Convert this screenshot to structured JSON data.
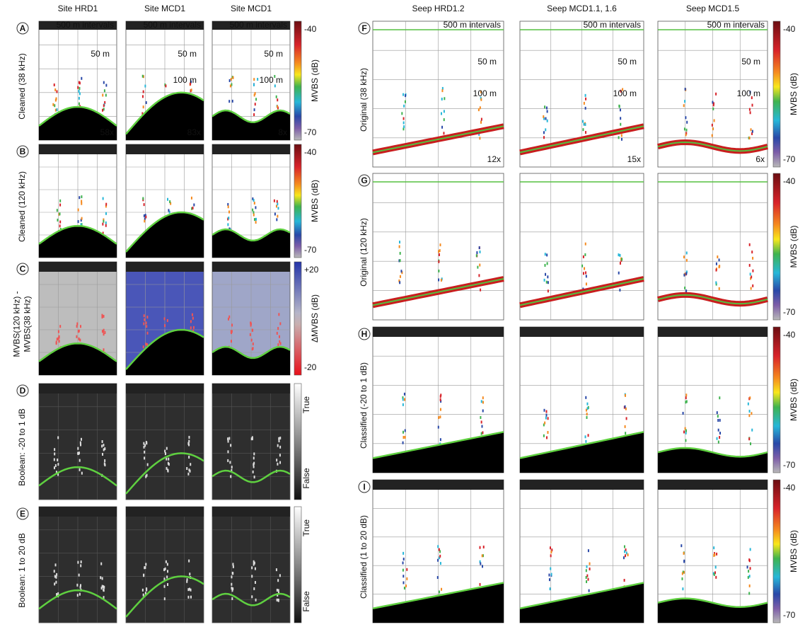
{
  "columns": {
    "left": [
      "Site HRD1",
      "Site MCD1",
      "Site MCD1"
    ],
    "right": [
      "Seep HRD1.2",
      "Seep MCD1.1, 1.6",
      "Seep MCD1.5"
    ]
  },
  "rows": [
    {
      "letter": "A",
      "label": [
        "Cleaned (38 kHz)"
      ],
      "colorbar": {
        "title": "MVBS (dB)",
        "top": "-40",
        "bottom": "-70"
      },
      "annotations": [
        {
          "interval": "500 m intervals",
          "depths": [
            "50 m"
          ],
          "zoom": "58x"
        },
        {
          "interval": "500 m intervals",
          "depths": [
            "50 m",
            "100 m"
          ],
          "zoom": "83x"
        },
        {
          "interval": "500 m intervals",
          "depths": [
            "50 m",
            "100 m"
          ],
          "zoom": "8x"
        }
      ]
    },
    {
      "letter": "B",
      "label": [
        "Cleaned (120 kHz)"
      ],
      "colorbar": {
        "title": "MVBS (dB)",
        "top": "-40",
        "bottom": "-70"
      }
    },
    {
      "letter": "C",
      "label": [
        "MVBS(120 kHz) -",
        "MVBS(38 kHz)"
      ],
      "colorbar": {
        "title": "ΔMVBS (dB)",
        "top": "+20",
        "bottom": "-20"
      }
    },
    {
      "letter": "D",
      "label": [
        "Boolean: -20 to 1 dB"
      ],
      "colorbar": {
        "top": "True",
        "bottom": "False"
      }
    },
    {
      "letter": "E",
      "label": [
        "Boolean: 1 to 20 dB"
      ],
      "colorbar": {
        "top": "True",
        "bottom": "False"
      }
    },
    {
      "letter": "F",
      "label": [
        "Original (38 kHz)"
      ],
      "colorbar": {
        "title": "MVBS (dB)",
        "top": "-40",
        "bottom": "-70"
      },
      "annotations": [
        {
          "interval": "500 m intervals",
          "depths": [
            "50 m",
            "100 m"
          ],
          "zoom": "12x"
        },
        {
          "interval": "500 m intervals",
          "depths": [
            "50 m",
            "100 m"
          ],
          "zoom": "15x"
        },
        {
          "interval": "500 m intervals",
          "depths": [
            "50 m",
            "100 m"
          ],
          "zoom": "6x"
        }
      ]
    },
    {
      "letter": "G",
      "label": [
        "Original (120 kHz)"
      ],
      "colorbar": {
        "title": "MVBS (dB)",
        "top": "-40",
        "bottom": "-70"
      }
    },
    {
      "letter": "H",
      "label": [
        "Classified (-20 to 1 dB)"
      ],
      "colorbar": {
        "title": "MVBS (dB)",
        "top": "-40",
        "bottom": "-70"
      }
    },
    {
      "letter": "I",
      "label": [
        "Classified (1 to 20 dB)"
      ],
      "colorbar": {
        "title": "MVBS (dB)",
        "top": "-40",
        "bottom": "-70"
      }
    }
  ]
}
